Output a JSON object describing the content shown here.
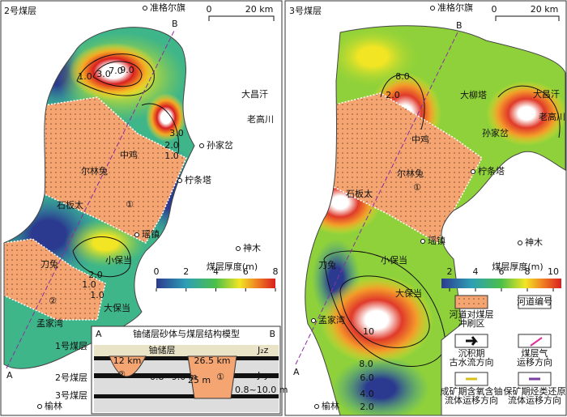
{
  "left": {
    "title": "2号煤层",
    "scale_zero": "0",
    "scale_length": "20 km",
    "section_start": "A",
    "section_end": "B",
    "places": [
      "准格尔旗",
      "大昌汗",
      "老高川",
      "孙家岔",
      "中鸡",
      "尔林兔",
      "柠条塔",
      "石板太",
      "瑶镇",
      "神木",
      "小保当",
      "刀兔",
      "大保当",
      "孟家湾",
      "榆林"
    ],
    "contours": [
      "1.0",
      "3.0",
      "7.0",
      "9.0",
      "3.0",
      "2.0",
      "1.0",
      "1.0",
      "2.0",
      "1.0"
    ],
    "channels": [
      "①",
      "②"
    ],
    "colorbar": {
      "title": "煤层厚度(m)",
      "ticks": [
        0,
        2,
        4,
        6,
        8
      ]
    }
  },
  "inset": {
    "title": "铀储层砂体与煤层结构模型",
    "start": "A",
    "end": "B",
    "layers": [
      "1号煤层",
      "2号煤层",
      "3号煤层"
    ],
    "widths": [
      "12 km",
      "26.5 km"
    ],
    "reservoir": "铀储层",
    "formations": [
      "J₂z",
      "J₂y"
    ],
    "thicknesses": [
      "0.8~9.0 m",
      "0.8~10.0 m"
    ],
    "depth": "25 m",
    "channels": [
      "②",
      "①"
    ]
  },
  "right": {
    "title": "3号煤层",
    "scale_zero": "0",
    "scale_length": "20 km",
    "section_start": "A",
    "section_end": "B",
    "places": [
      "准格尔旗",
      "大柳塔",
      "大昌汗",
      "老高川",
      "中鸡",
      "孙家岔",
      "尔林兔",
      "柠条塔",
      "石板太",
      "瑶镇",
      "神木",
      "小保当",
      "刀兔",
      "大保当",
      "孟家湾",
      "榆林"
    ],
    "contours": [
      "2.0",
      "8.0",
      "10",
      "8.0",
      "6.0",
      "4.0",
      "2.0"
    ],
    "channels": [
      "①"
    ],
    "colorbar": {
      "title": "煤层厚度(m)",
      "ticks": [
        2,
        4,
        6,
        8,
        10
      ]
    }
  },
  "legend": [
    [
      "河道对煤层",
      "冲刷区"
    ],
    [
      "河道编号"
    ],
    [
      "沉积期",
      "古水流方向"
    ],
    [
      "煤层气",
      "运移方向"
    ],
    [
      "成矿期含氧含铀",
      "流体运移方向"
    ],
    [
      "保矿期烃类还原",
      "流体运移方向"
    ]
  ]
}
